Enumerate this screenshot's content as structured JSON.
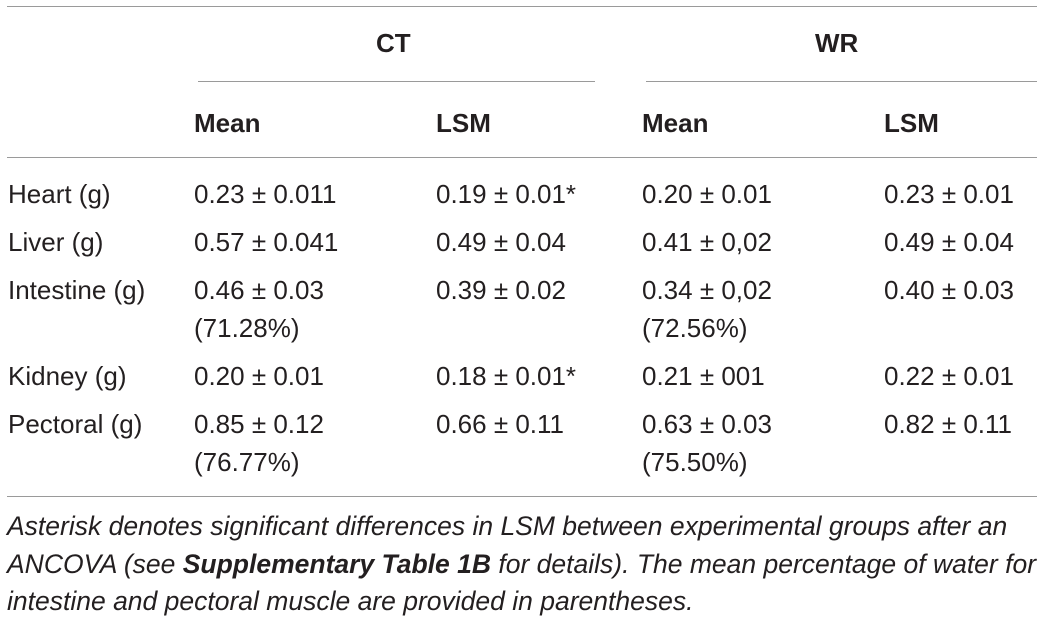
{
  "groups": {
    "ct": "CT",
    "wr": "WR"
  },
  "columns": {
    "ct_mean": "Mean",
    "ct_lsm": "LSM",
    "wr_mean": "Mean",
    "wr_lsm": "LSM"
  },
  "rows": [
    {
      "label": "Heart (g)",
      "ct_mean": "0.23 ± 0.011",
      "ct_mean_pct": "",
      "ct_lsm": "0.19 ± 0.01*",
      "wr_mean": "0.20 ± 0.01",
      "wr_mean_pct": "",
      "wr_lsm": "0.23 ± 0.01"
    },
    {
      "label": "Liver (g)",
      "ct_mean": "0.57 ± 0.041",
      "ct_mean_pct": "",
      "ct_lsm": "0.49 ± 0.04",
      "wr_mean": "0.41 ± 0,02",
      "wr_mean_pct": "",
      "wr_lsm": "0.49 ± 0.04"
    },
    {
      "label": "Intestine (g)",
      "ct_mean": "0.46 ± 0.03",
      "ct_mean_pct": "(71.28%)",
      "ct_lsm": "0.39 ± 0.02",
      "wr_mean": "0.34 ± 0,02",
      "wr_mean_pct": "(72.56%)",
      "wr_lsm": "0.40 ± 0.03"
    },
    {
      "label": "Kidney (g)",
      "ct_mean": "0.20 ± 0.01",
      "ct_mean_pct": "",
      "ct_lsm": "0.18 ± 0.01*",
      "wr_mean": "0.21 ± 001",
      "wr_mean_pct": "",
      "wr_lsm": "0.22 ± 0.01"
    },
    {
      "label": "Pectoral (g)",
      "ct_mean": "0.85 ± 0.12",
      "ct_mean_pct": "(76.77%)",
      "ct_lsm": "0.66 ± 0.11",
      "wr_mean": "0.63 ± 0.03",
      "wr_mean_pct": "(75.50%)",
      "wr_lsm": "0.82 ± 0.11"
    }
  ],
  "caption": {
    "part1": "Asterisk denotes significant differences in LSM between experimental groups after an ANCOVA (see ",
    "bold": "Supplementary Table 1B",
    "part2": " for details). The mean percentage of water for intestine and pectoral muscle are provided in parentheses."
  }
}
